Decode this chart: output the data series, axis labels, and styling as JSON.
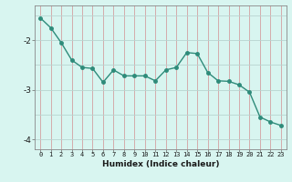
{
  "x": [
    0,
    1,
    2,
    3,
    4,
    5,
    6,
    7,
    8,
    9,
    10,
    11,
    12,
    13,
    14,
    15,
    16,
    17,
    18,
    19,
    20,
    21,
    22,
    23
  ],
  "y": [
    -1.55,
    -1.75,
    -2.05,
    -2.4,
    -2.55,
    -2.57,
    -2.85,
    -2.6,
    -2.72,
    -2.72,
    -2.72,
    -2.82,
    -2.6,
    -2.55,
    -2.25,
    -2.27,
    -2.65,
    -2.82,
    -2.83,
    -2.9,
    -3.05,
    -3.55,
    -3.65,
    -3.72
  ],
  "line_color": "#2e8b7a",
  "marker": "o",
  "bg_color": "#d8f5f0",
  "grid_color": "#c0ddd8",
  "grid_vcolor": "#d4b0b0",
  "xlabel": "Humidex (Indice chaleur)",
  "yticks": [
    -4,
    -3,
    -2
  ],
  "ylim": [
    -4.2,
    -1.3
  ],
  "xlim": [
    -0.5,
    23.5
  ],
  "title": ""
}
